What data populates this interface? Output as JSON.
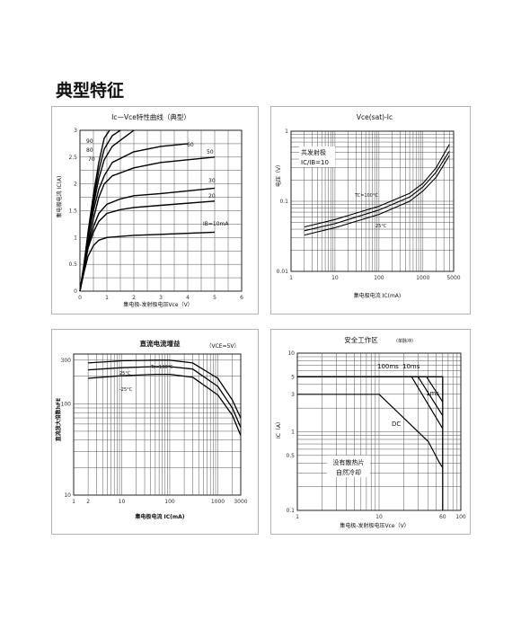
{
  "page": {
    "title": "典型特征"
  },
  "chart_data": [
    {
      "type": "line",
      "title": "Ic—Vce特性曲线（典型）",
      "xlabel": "集电极-发射极电压Vce（V）",
      "ylabel": "集电极电流 IC(A)",
      "xlim": [
        0,
        6
      ],
      "ylim": [
        0,
        3
      ],
      "xticks": [
        "0",
        "1",
        "2",
        "3",
        "4",
        "5",
        "6"
      ],
      "yticks": [
        "0",
        "0.5",
        "1",
        "1.5",
        "2",
        "2.5",
        "3"
      ],
      "grid": true,
      "series": [
        {
          "name": "90",
          "x": [
            0,
            0.15,
            0.3,
            0.5,
            0.7,
            0.9,
            1.1
          ],
          "y": [
            0,
            0.5,
            1.1,
            1.8,
            2.4,
            2.85,
            3.0
          ]
        },
        {
          "name": "80",
          "x": [
            0,
            0.15,
            0.3,
            0.5,
            0.7,
            0.9,
            1.2,
            1.5
          ],
          "y": [
            0,
            0.5,
            1.05,
            1.7,
            2.25,
            2.65,
            2.9,
            3.0
          ]
        },
        {
          "name": "70",
          "x": [
            0,
            0.15,
            0.3,
            0.5,
            0.7,
            0.9,
            1.2,
            1.6,
            2.0
          ],
          "y": [
            0,
            0.45,
            1.0,
            1.6,
            2.1,
            2.45,
            2.7,
            2.85,
            3.0
          ]
        },
        {
          "name": "60",
          "x": [
            0,
            0.15,
            0.3,
            0.5,
            0.7,
            0.9,
            1.2,
            2,
            3,
            4
          ],
          "y": [
            0,
            0.45,
            1.0,
            1.5,
            1.9,
            2.15,
            2.4,
            2.6,
            2.7,
            2.75
          ]
        },
        {
          "name": "50",
          "x": [
            0,
            0.15,
            0.3,
            0.5,
            0.7,
            0.9,
            1.2,
            2,
            3,
            5
          ],
          "y": [
            0,
            0.4,
            0.9,
            1.35,
            1.75,
            2.0,
            2.15,
            2.3,
            2.4,
            2.5
          ]
        },
        {
          "name": "30",
          "x": [
            0,
            0.15,
            0.3,
            0.5,
            0.7,
            1.0,
            1.5,
            2,
            3,
            5
          ],
          "y": [
            0,
            0.4,
            0.85,
            1.2,
            1.45,
            1.62,
            1.72,
            1.78,
            1.82,
            1.92
          ]
        },
        {
          "name": "20",
          "x": [
            0,
            0.15,
            0.3,
            0.5,
            0.7,
            1.0,
            1.5,
            2,
            3,
            5
          ],
          "y": [
            0,
            0.4,
            0.8,
            1.1,
            1.3,
            1.45,
            1.52,
            1.56,
            1.6,
            1.68
          ]
        },
        {
          "name": "IB=10mA",
          "x": [
            0,
            0.15,
            0.3,
            0.5,
            0.7,
            1.0,
            1.5,
            2,
            3,
            5
          ],
          "y": [
            0,
            0.35,
            0.65,
            0.85,
            0.95,
            1.0,
            1.02,
            1.04,
            1.06,
            1.1
          ]
        }
      ]
    },
    {
      "type": "line",
      "title": "Vce(sat)-Ic",
      "xlabel": "集电极电流 IC(mA)",
      "ylabel": "电压（V）",
      "xscale": "log",
      "yscale": "log",
      "xlim": [
        1,
        5000
      ],
      "ylim": [
        0.01,
        1
      ],
      "xticks": [
        "1",
        "10",
        "100",
        "1000",
        "5000"
      ],
      "yticks": [
        "0.01",
        "0.1",
        "1"
      ],
      "grid": true,
      "annotations": [
        "共发射极",
        "IC/IB=10"
      ],
      "series": [
        {
          "name": "TC=100°C",
          "x": [
            2,
            10,
            100,
            500,
            1000,
            2000,
            4000
          ],
          "y": [
            0.043,
            0.055,
            0.085,
            0.13,
            0.18,
            0.3,
            0.65
          ]
        },
        {
          "name": "",
          "x": [
            2,
            10,
            100,
            500,
            1000,
            2000,
            4000
          ],
          "y": [
            0.038,
            0.048,
            0.075,
            0.115,
            0.16,
            0.26,
            0.52
          ]
        },
        {
          "name": "25°C",
          "x": [
            2,
            10,
            100,
            500,
            1000,
            2000,
            4000
          ],
          "y": [
            0.033,
            0.042,
            0.065,
            0.1,
            0.14,
            0.22,
            0.45
          ]
        }
      ]
    },
    {
      "type": "line",
      "title": "直流电流增益",
      "annotations": [
        "（VCE=5V）"
      ],
      "xlabel": "集电极电流 IC(mA)",
      "ylabel": "直流放大倍数hFE",
      "xscale": "log",
      "yscale": "log",
      "xlim": [
        1,
        3000
      ],
      "ylim": [
        10,
        350
      ],
      "xticks": [
        "1",
        "2",
        "10",
        "100",
        "1000",
        "3000"
      ],
      "yticks": [
        "10",
        "100",
        "300"
      ],
      "grid": true,
      "series": [
        {
          "name": "Tc=100°C",
          "x": [
            2,
            10,
            50,
            100,
            300,
            1000,
            2000,
            3000
          ],
          "y": [
            280,
            295,
            300,
            300,
            280,
            190,
            110,
            70
          ]
        },
        {
          "name": "25°C",
          "x": [
            2,
            10,
            50,
            100,
            300,
            1000,
            2000,
            3000
          ],
          "y": [
            235,
            248,
            255,
            255,
            240,
            155,
            90,
            55
          ]
        },
        {
          "name": "-25°C",
          "x": [
            2,
            10,
            50,
            100,
            300,
            1000,
            2000,
            3000
          ],
          "y": [
            190,
            203,
            210,
            210,
            195,
            125,
            75,
            45
          ]
        }
      ]
    },
    {
      "type": "line",
      "title": "安全工作区",
      "annotations": [
        "（单脉冲）",
        "没有散热片",
        "自然冷却"
      ],
      "xlabel": "集电极-发射极电压Vce（V）",
      "ylabel": "IC（A）",
      "xscale": "log",
      "yscale": "log",
      "xlim": [
        1,
        100
      ],
      "ylim": [
        0.1,
        10
      ],
      "xticks": [
        "1",
        "10",
        "60",
        "100"
      ],
      "yticks": [
        "0.1",
        "0.5",
        "1",
        "3",
        "5",
        "10"
      ],
      "grid": true,
      "series": [
        {
          "name": "100ms",
          "x": [
            1,
            25,
            60
          ],
          "y": [
            5,
            5,
            1.1
          ]
        },
        {
          "name": "10ms",
          "x": [
            1,
            30,
            60
          ],
          "y": [
            5,
            5,
            1.6
          ]
        },
        {
          "name": "1ms",
          "x": [
            1,
            38,
            60
          ],
          "y": [
            5,
            5,
            2.4
          ]
        },
        {
          "name": "DC",
          "x": [
            1,
            10,
            40,
            55,
            60
          ],
          "y": [
            3,
            3,
            0.75,
            0.4,
            0.35
          ]
        }
      ],
      "boundary": {
        "x": [
          1,
          60,
          60
        ],
        "y": [
          5,
          5,
          0.1
        ]
      }
    }
  ]
}
